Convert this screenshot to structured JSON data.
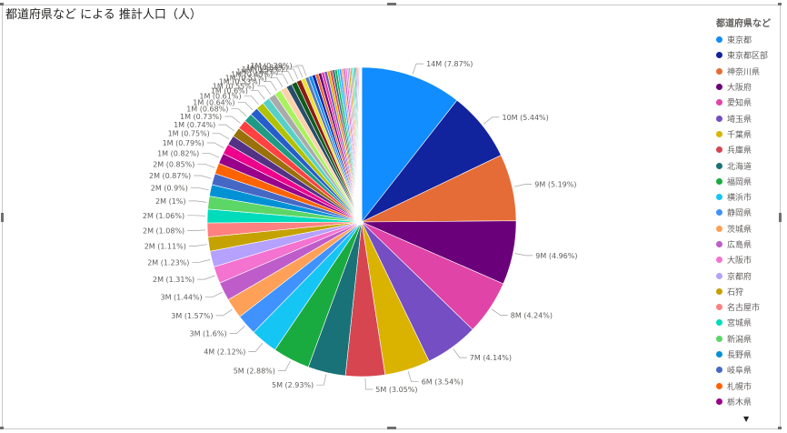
{
  "visual": {
    "title": "都道府県など による 推計人口（人）",
    "legend_title": "都道府県など"
  },
  "legend": [
    {
      "label": "東京都",
      "color": "#118DFF"
    },
    {
      "label": "東京都区部",
      "color": "#12239E"
    },
    {
      "label": "神奈川県",
      "color": "#E66C37"
    },
    {
      "label": "大阪府",
      "color": "#6B007B"
    },
    {
      "label": "愛知県",
      "color": "#E044A7"
    },
    {
      "label": "埼玉県",
      "color": "#744EC2"
    },
    {
      "label": "千葉県",
      "color": "#D9B300"
    },
    {
      "label": "兵庫県",
      "color": "#D64550"
    },
    {
      "label": "北海道",
      "color": "#197278"
    },
    {
      "label": "福岡県",
      "color": "#1AAB40"
    },
    {
      "label": "横浜市",
      "color": "#15C6F4"
    },
    {
      "label": "静岡県",
      "color": "#4092FF"
    },
    {
      "label": "茨城県",
      "color": "#FFA058"
    },
    {
      "label": "広島県",
      "color": "#BE5DC9"
    },
    {
      "label": "大阪市",
      "color": "#F472D0"
    },
    {
      "label": "京都府",
      "color": "#B5A1FF"
    },
    {
      "label": "石狩",
      "color": "#C4A200"
    },
    {
      "label": "名古屋市",
      "color": "#FF8080"
    },
    {
      "label": "宮城県",
      "color": "#00DBBC"
    },
    {
      "label": "新潟県",
      "color": "#5BD667"
    },
    {
      "label": "長野県",
      "color": "#0091D5"
    },
    {
      "label": "岐阜県",
      "color": "#4668C5"
    },
    {
      "label": "札幌市",
      "color": "#FF6300"
    },
    {
      "label": "栃木県",
      "color": "#99008A"
    }
  ],
  "chart_data": {
    "type": "pie",
    "title": "都道府県など による 推計人口（人）",
    "legend_position": "right",
    "labeled_slices": [
      {
        "label": "14M (7.87%)",
        "percent": 7.87
      },
      {
        "label": "10M (5.44%)",
        "percent": 5.44
      },
      {
        "label": "9M (5.19%)",
        "percent": 5.19
      },
      {
        "label": "9M (4.96%)",
        "percent": 4.96
      },
      {
        "label": "8M (4.24%)",
        "percent": 4.24
      },
      {
        "label": "7M (4.14%)",
        "percent": 4.14
      },
      {
        "label": "6M (3.54%)",
        "percent": 3.54
      },
      {
        "label": "5M (3.05%)",
        "percent": 3.05
      },
      {
        "label": "5M (2.93%)",
        "percent": 2.93
      },
      {
        "label": "5M (2.88%)",
        "percent": 2.88
      },
      {
        "label": "4M (2.12%)",
        "percent": 2.12
      },
      {
        "label": "3M (1.6%)",
        "percent": 1.6
      },
      {
        "label": "3M (1.57%)",
        "percent": 1.57
      },
      {
        "label": "3M (1.44%)",
        "percent": 1.44
      },
      {
        "label": "2M (1.31%)",
        "percent": 1.31
      },
      {
        "label": "2M (1.23%)",
        "percent": 1.23
      },
      {
        "label": "2M (1.11%)",
        "percent": 1.11
      },
      {
        "label": "2M (1.08%)",
        "percent": 1.08
      },
      {
        "label": "2M (1.06%)",
        "percent": 1.06
      },
      {
        "label": "2M (1%)",
        "percent": 1.0
      },
      {
        "label": "2M (0.9%)",
        "percent": 0.9
      },
      {
        "label": "2M (0.87%)",
        "percent": 0.87
      },
      {
        "label": "2M (0.85%)",
        "percent": 0.85
      },
      {
        "label": "1M (0.82%)",
        "percent": 0.82
      },
      {
        "label": "1M (0.79%)",
        "percent": 0.79
      },
      {
        "label": "1M (0.75%)",
        "percent": 0.75
      },
      {
        "label": "1M (0.74%)",
        "percent": 0.74
      },
      {
        "label": "1M (0.73%)",
        "percent": 0.73
      },
      {
        "label": "1M (0.68%)",
        "percent": 0.68
      },
      {
        "label": "1M (0.64%)",
        "percent": 0.64
      },
      {
        "label": "1M (0.61%)",
        "percent": 0.61
      },
      {
        "label": "1M (0.6%)",
        "percent": 0.6
      },
      {
        "label": "1M (0.55%)",
        "percent": 0.55
      },
      {
        "label": "1M (0.53%)",
        "percent": 0.53
      },
      {
        "label": "1M (0.51%)",
        "percent": 0.51
      },
      {
        "label": "1M (0.45%)",
        "percent": 0.45
      },
      {
        "label": "1M (0.42%)",
        "percent": 0.42
      },
      {
        "label": "1M (0.39%)",
        "percent": 0.39
      },
      {
        "label": "1M (0.33%)",
        "percent": 0.33
      },
      {
        "label": "1M (0.29%)",
        "percent": 0.29
      }
    ],
    "unlabeled_slice_percents": [
      0.27,
      0.26,
      0.25,
      0.24,
      0.23,
      0.22,
      0.21,
      0.2,
      0.19,
      0.18,
      0.17,
      0.16,
      0.15,
      0.15,
      0.14,
      0.13,
      0.12,
      0.11,
      0.1,
      0.1,
      0.09,
      0.08,
      0.07,
      0.06,
      0.06,
      0.05,
      0.05,
      0.04,
      0.04,
      0.03
    ],
    "palette": [
      "#118DFF",
      "#12239E",
      "#E66C37",
      "#6B007B",
      "#E044A7",
      "#744EC2",
      "#D9B300",
      "#D64550",
      "#197278",
      "#1AAB40",
      "#15C6F4",
      "#4092FF",
      "#FFA058",
      "#BE5DC9",
      "#F472D0",
      "#B5A1FF",
      "#C4A200",
      "#FF8080",
      "#00DBBC",
      "#5BD667",
      "#0091D5",
      "#4668C5",
      "#FF6300",
      "#99008A",
      "#EC008C",
      "#533285",
      "#99700A",
      "#FF4141",
      "#1F9A85",
      "#255DCD",
      "#B1C200",
      "#58D0C8",
      "#AAAAAA",
      "#A8F25D",
      "#FAD1AA",
      "#2A4D69",
      "#0E5C1A",
      "#8C1C13",
      "#F0E130",
      "#5B7DB1"
    ]
  }
}
